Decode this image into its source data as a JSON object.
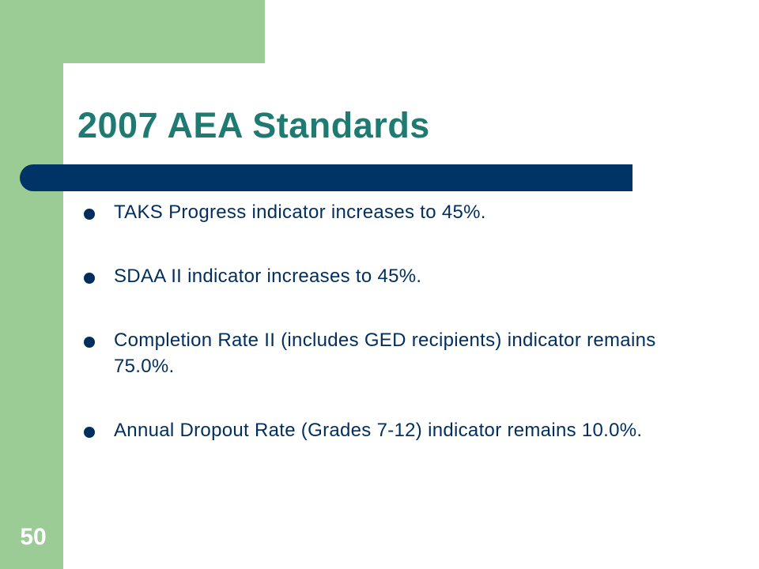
{
  "slide": {
    "title": "2007 AEA Standards",
    "slide_number": "50",
    "bullets": [
      "TAKS Progress indicator increases to 45%.",
      "SDAA II indicator increases to 45%.",
      "Completion Rate II (includes GED recipients) indicator remains 75.0%.",
      "Annual Dropout Rate (Grades 7-12) indicator remains 10.0%."
    ]
  },
  "colors": {
    "accent_green": "#9ccc95",
    "title_teal": "#1f7a72",
    "navy": "#003466",
    "text_navy": "#002f5f"
  }
}
